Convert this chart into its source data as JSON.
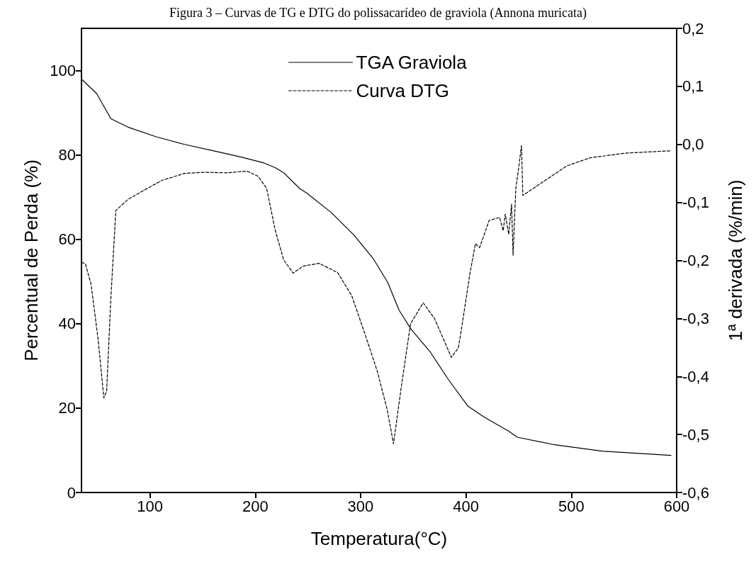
{
  "chart_data": {
    "type": "line",
    "title": "Figura 3 – Curvas de TG e DTG do polissacarídeo de graviola (Annona muricata)",
    "xlabel": "Temperatura(°C)",
    "ylabel": "Percentual de Perda (%)",
    "y2label": "1ª derivada (%/min)",
    "xlim": [
      35,
      600
    ],
    "xticks": [
      100,
      200,
      300,
      400,
      500,
      600
    ],
    "ylim": [
      0,
      110
    ],
    "yticks": [
      0,
      20,
      40,
      60,
      80,
      100
    ],
    "y2lim": [
      -0.6,
      0.2
    ],
    "y2ticks": [
      {
        "value": -0.6,
        "label": "-0,6"
      },
      {
        "value": -0.5,
        "label": "-0,5"
      },
      {
        "value": -0.4,
        "label": "-0,4"
      },
      {
        "value": -0.3,
        "label": "-0,3"
      },
      {
        "value": -0.2,
        "label": "-0,2"
      },
      {
        "value": -0.1,
        "label": "-0,1"
      },
      {
        "value": 0,
        "label": "0,0"
      },
      {
        "value": 0.1,
        "label": "0,1"
      },
      {
        "value": 0.2,
        "label": "0,2"
      }
    ],
    "legend": "top",
    "marker": "none",
    "series": [
      {
        "name": "TGA Graviola",
        "color": "#000000",
        "line_style": "solid",
        "x": [
          35,
          49.5,
          62.9,
          79,
          105.9,
          132.8,
          159.7,
          186.6,
          208.1,
          218.8,
          226.9,
          242.3,
          249.1,
          271.9,
          294.1,
          312.3,
          325.7,
          336.5,
          347.9,
          366.1,
          383.5,
          401.7,
          417.2,
          440,
          448.8,
          484.4,
          529.4,
          594.6
        ],
        "values": [
          98,
          94.5,
          88.6,
          86.6,
          84.3,
          82.5,
          81,
          79.5,
          78.1,
          77,
          75.8,
          72,
          70.9,
          66.4,
          60.9,
          55.3,
          49.8,
          43.2,
          38.7,
          33.3,
          26.7,
          20.5,
          17.9,
          14.6,
          13.1,
          11.3,
          9.8,
          8.8
        ]
      },
      {
        "name": "Curva DTG",
        "color": "#000000",
        "line_style": "dashed",
        "axis": "y2",
        "x": [
          35,
          38.7,
          44.1,
          50.8,
          56.2,
          58.9,
          62.9,
          67.6,
          79,
          92.5,
          111.3,
          132.8,
          151.6,
          173.1,
          192,
          202.7,
          210.8,
          218.8,
          226.9,
          236,
          245,
          260.5,
          278.2,
          291.6,
          305.1,
          315.8,
          325.2,
          331.2,
          338.6,
          347.4,
          359.4,
          370.1,
          386.1,
          392.7,
          395,
          403.9,
          409,
          412.9,
          422,
          432,
          435.3,
          437.3,
          440.6,
          443.3,
          444.7,
          447.3,
          450,
          452.7,
          454,
          473.6,
          495.8,
          518,
          551.6,
          594.6
        ],
        "values": [
          -0.203,
          -0.206,
          -0.241,
          -0.336,
          -0.437,
          -0.425,
          -0.265,
          -0.114,
          -0.095,
          -0.081,
          -0.062,
          -0.05,
          -0.048,
          -0.049,
          -0.046,
          -0.055,
          -0.076,
          -0.147,
          -0.199,
          -0.222,
          -0.21,
          -0.205,
          -0.221,
          -0.261,
          -0.332,
          -0.391,
          -0.457,
          -0.516,
          -0.418,
          -0.309,
          -0.273,
          -0.3,
          -0.367,
          -0.351,
          -0.327,
          -0.221,
          -0.171,
          -0.178,
          -0.131,
          -0.126,
          -0.149,
          -0.12,
          -0.155,
          -0.103,
          -0.191,
          -0.076,
          -0.041,
          -0.002,
          -0.088,
          -0.064,
          -0.037,
          -0.023,
          -0.015,
          -0.011
        ]
      }
    ]
  }
}
